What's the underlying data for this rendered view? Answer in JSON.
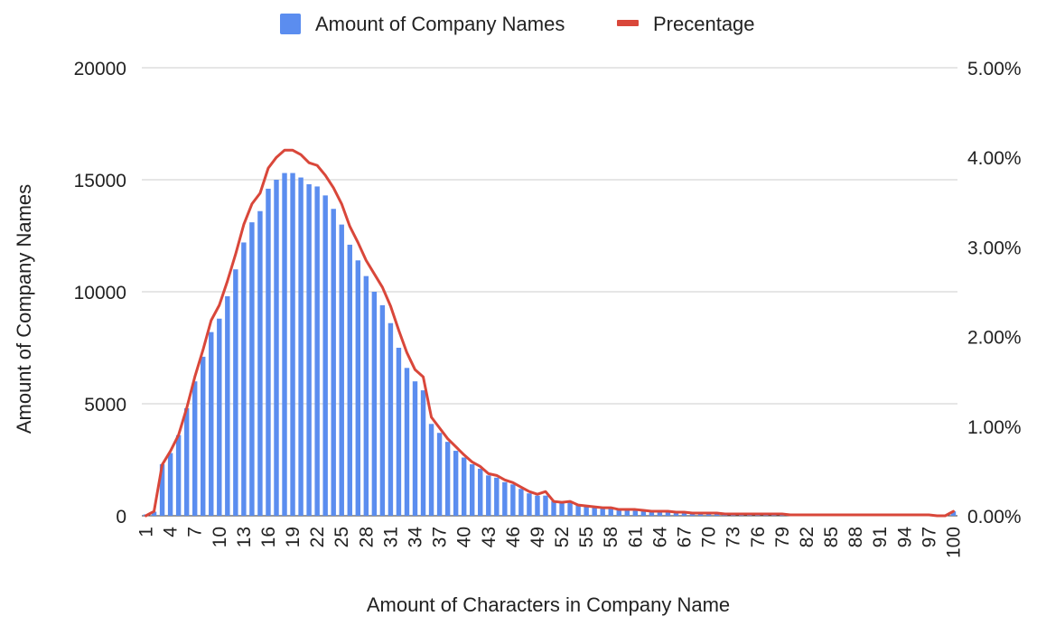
{
  "chart_data": {
    "type": "bar",
    "xlabel": "Amount of Characters in Company Name",
    "ylabel": "Amount of Company Names",
    "ylim": [
      0,
      20000
    ],
    "y2lim": [
      0,
      0.05
    ],
    "y_ticks": [
      "0",
      "5000",
      "10000",
      "15000",
      "20000"
    ],
    "y2_ticks": [
      "0.00%",
      "1.00%",
      "2.00%",
      "3.00%",
      "4.00%",
      "5.00%"
    ],
    "x_tick_labels": [
      "1",
      "4",
      "7",
      "10",
      "13",
      "16",
      "19",
      "22",
      "25",
      "28",
      "31",
      "34",
      "37",
      "40",
      "43",
      "46",
      "49",
      "52",
      "55",
      "58",
      "61",
      "64",
      "67",
      "70",
      "73",
      "76",
      "79",
      "82",
      "85",
      "88",
      "91",
      "94",
      "97",
      "100"
    ],
    "grid": true,
    "legend_position": "top",
    "colors": {
      "bars": "#5b8def",
      "line": "#d9473a",
      "grid": "#cccccc",
      "axis": "#333333"
    },
    "categories": [
      1,
      2,
      3,
      4,
      5,
      6,
      7,
      8,
      9,
      10,
      11,
      12,
      13,
      14,
      15,
      16,
      17,
      18,
      19,
      20,
      21,
      22,
      23,
      24,
      25,
      26,
      27,
      28,
      29,
      30,
      31,
      32,
      33,
      34,
      35,
      36,
      37,
      38,
      39,
      40,
      41,
      42,
      43,
      44,
      45,
      46,
      47,
      48,
      49,
      50,
      51,
      52,
      53,
      54,
      55,
      56,
      57,
      58,
      59,
      60,
      61,
      62,
      63,
      64,
      65,
      66,
      67,
      68,
      69,
      70,
      71,
      72,
      73,
      74,
      75,
      76,
      77,
      78,
      79,
      80,
      81,
      82,
      83,
      84,
      85,
      86,
      87,
      88,
      89,
      90,
      91,
      92,
      93,
      94,
      95,
      96,
      97,
      98,
      99,
      100
    ],
    "series": [
      {
        "name": "Amount of Company Names",
        "type": "bar",
        "axis": "left",
        "values": [
          60,
          180,
          2300,
          2800,
          3600,
          4800,
          6000,
          7100,
          8200,
          8800,
          9800,
          11000,
          12200,
          13100,
          13600,
          14600,
          15000,
          15300,
          15300,
          15100,
          14800,
          14700,
          14300,
          13700,
          13000,
          12100,
          11400,
          10700,
          10000,
          9400,
          8600,
          7500,
          6600,
          6000,
          5600,
          4100,
          3700,
          3300,
          2900,
          2600,
          2300,
          2100,
          1800,
          1700,
          1500,
          1400,
          1200,
          1000,
          900,
          900,
          650,
          600,
          600,
          500,
          450,
          400,
          350,
          320,
          280,
          260,
          250,
          220,
          200,
          200,
          180,
          160,
          150,
          140,
          130,
          120,
          110,
          100,
          95,
          90,
          85,
          80,
          75,
          70,
          65,
          60,
          55,
          50,
          48,
          45,
          42,
          40,
          38,
          36,
          34,
          32,
          30,
          28,
          26,
          24,
          22,
          20,
          18,
          16,
          14,
          200
        ]
      },
      {
        "name": "Precentage",
        "type": "line",
        "axis": "right",
        "values": [
          0.0,
          0.0005,
          0.0057,
          0.0072,
          0.009,
          0.012,
          0.0155,
          0.0185,
          0.0218,
          0.0235,
          0.0262,
          0.0292,
          0.0325,
          0.0348,
          0.036,
          0.0388,
          0.04,
          0.0408,
          0.0408,
          0.0403,
          0.0394,
          0.0391,
          0.038,
          0.0366,
          0.0348,
          0.0323,
          0.0305,
          0.0285,
          0.027,
          0.0255,
          0.0234,
          0.0207,
          0.0182,
          0.0163,
          0.0155,
          0.011,
          0.0098,
          0.0086,
          0.0077,
          0.0068,
          0.006,
          0.0055,
          0.0047,
          0.0045,
          0.004,
          0.0037,
          0.0032,
          0.0027,
          0.0024,
          0.0027,
          0.0016,
          0.0015,
          0.0016,
          0.0012,
          0.0011,
          0.001,
          0.0009,
          0.0009,
          0.0007,
          0.0007,
          0.0007,
          0.0006,
          0.0005,
          0.0005,
          0.0005,
          0.0004,
          0.0004,
          0.0003,
          0.0003,
          0.0003,
          0.0003,
          0.0002,
          0.0002,
          0.0002,
          0.0002,
          0.0002,
          0.0002,
          0.0002,
          0.0002,
          0.0001,
          0.0001,
          0.0001,
          0.0001,
          0.0001,
          0.0001,
          0.0001,
          0.0001,
          0.0001,
          0.0001,
          0.0001,
          0.0001,
          0.0001,
          0.0001,
          0.0001,
          0.0001,
          0.0001,
          0.0001,
          0.0,
          0.0,
          0.0005
        ]
      }
    ]
  }
}
